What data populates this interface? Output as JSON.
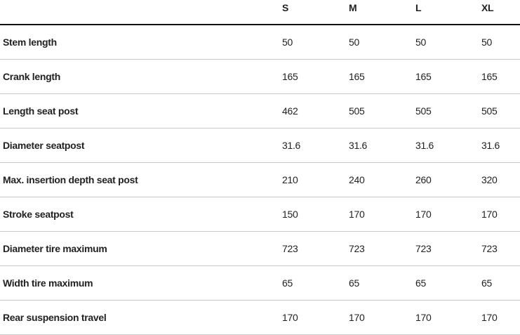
{
  "table": {
    "columns": [
      "",
      "S",
      "M",
      "L",
      "XL"
    ],
    "rows": [
      {
        "label": "Stem length",
        "values": [
          "50",
          "50",
          "50",
          "50"
        ]
      },
      {
        "label": "Crank length",
        "values": [
          "165",
          "165",
          "165",
          "165"
        ]
      },
      {
        "label": "Length seat post",
        "values": [
          "462",
          "505",
          "505",
          "505"
        ]
      },
      {
        "label": "Diameter seatpost",
        "values": [
          "31.6",
          "31.6",
          "31.6",
          "31.6"
        ]
      },
      {
        "label": "Max. insertion depth seat post",
        "values": [
          "210",
          "240",
          "260",
          "320"
        ]
      },
      {
        "label": "Stroke seatpost",
        "values": [
          "150",
          "170",
          "170",
          "170"
        ]
      },
      {
        "label": "Diameter tire maximum",
        "values": [
          "723",
          "723",
          "723",
          "723"
        ]
      },
      {
        "label": "Width tire maximum",
        "values": [
          "65",
          "65",
          "65",
          "65"
        ]
      },
      {
        "label": "Rear suspension travel",
        "values": [
          "170",
          "170",
          "170",
          "170"
        ]
      }
    ]
  }
}
